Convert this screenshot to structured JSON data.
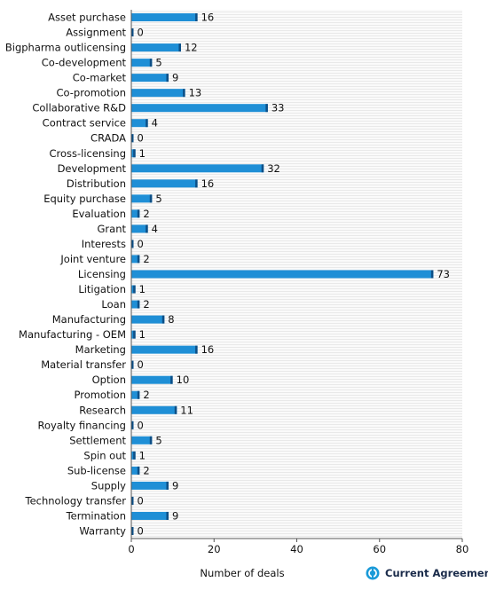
{
  "chart_data": {
    "type": "bar",
    "orientation": "horizontal",
    "categories": [
      "Asset purchase",
      "Assignment",
      "Bigpharma outlicensing",
      "Co-development",
      "Co-market",
      "Co-promotion",
      "Collaborative R&D",
      "Contract service",
      "CRADA",
      "Cross-licensing",
      "Development",
      "Distribution",
      "Equity purchase",
      "Evaluation",
      "Grant",
      "Interests",
      "Joint venture",
      "Licensing",
      "Litigation",
      "Loan",
      "Manufacturing",
      "Manufacturing - OEM",
      "Marketing",
      "Material transfer",
      "Option",
      "Promotion",
      "Research",
      "Royalty financing",
      "Settlement",
      "Spin out",
      "Sub-license",
      "Supply",
      "Technology transfer",
      "Termination",
      "Warranty"
    ],
    "values": [
      16,
      0,
      12,
      5,
      9,
      13,
      33,
      4,
      0,
      1,
      32,
      16,
      5,
      2,
      4,
      0,
      2,
      73,
      1,
      2,
      8,
      1,
      16,
      0,
      10,
      2,
      11,
      0,
      5,
      1,
      2,
      9,
      0,
      9,
      0
    ],
    "xlabel": "Number of deals",
    "xlim": [
      0,
      80
    ],
    "xticks": [
      0,
      20,
      40,
      60,
      80
    ],
    "bar_color": "#1f8fd6",
    "bar_edge_color": "#0d4f86",
    "grid": "horizontal stripes"
  },
  "brand": {
    "text": "Current Agreements",
    "icon": "current-agreements-logo-icon",
    "color": "#1a9ad8"
  }
}
